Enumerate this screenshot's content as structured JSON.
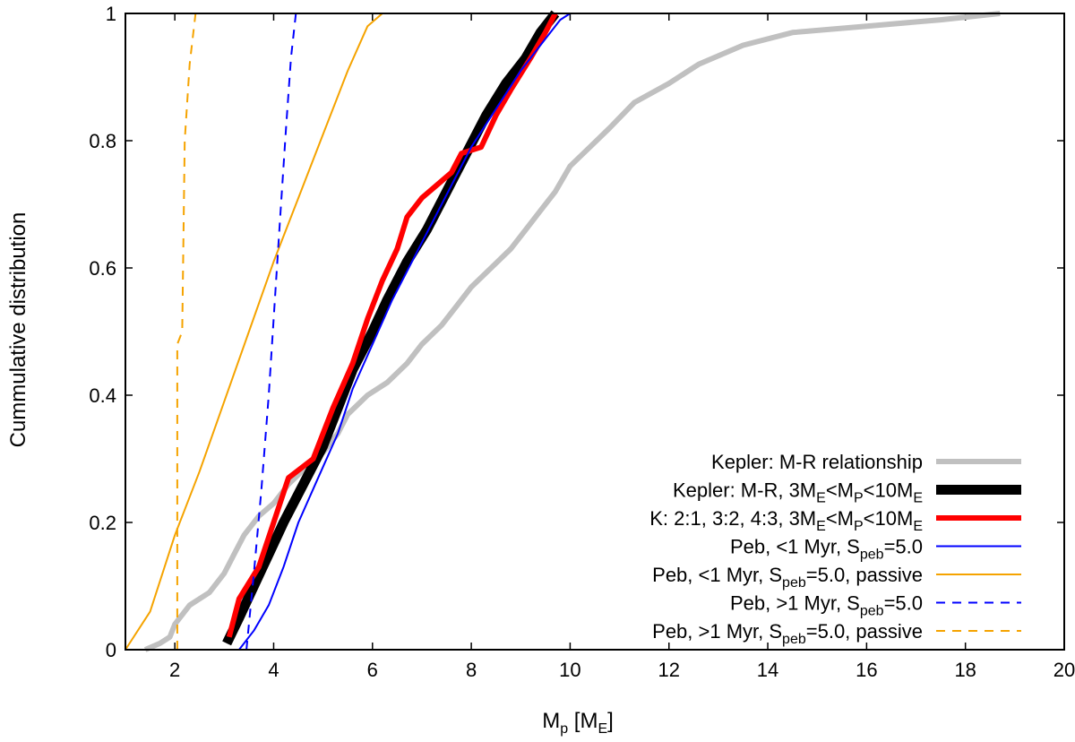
{
  "chart_data": {
    "type": "line",
    "xlabel": {
      "base": "M",
      "sub": "p",
      "rest": " [M",
      "sub2": "E",
      "end": "]"
    },
    "ylabel": "Cummulative distribution",
    "xlim": [
      1,
      20
    ],
    "ylim": [
      0,
      1
    ],
    "xticks": [
      2,
      4,
      6,
      8,
      10,
      12,
      14,
      16,
      18,
      20
    ],
    "xtick_labels": [
      "2",
      "4",
      "6",
      "8",
      "10",
      "12",
      "14",
      "16",
      "18",
      "20"
    ],
    "yticks": [
      0,
      0.2,
      0.4,
      0.6,
      0.8,
      1
    ],
    "ytick_labels": [
      "0",
      "0.2",
      "0.4",
      "0.6",
      "0.8",
      "1"
    ],
    "legend_position": "bottom-right",
    "series": [
      {
        "id": "kepler-mr",
        "legend": [
          {
            "t": "Kepler: M-R relationship"
          }
        ],
        "color": "#c0c0c0",
        "width": 6,
        "dash": "",
        "points": [
          [
            1.4,
            0
          ],
          [
            1.7,
            0.01
          ],
          [
            1.9,
            0.02
          ],
          [
            2.0,
            0.04
          ],
          [
            2.3,
            0.07
          ],
          [
            2.7,
            0.09
          ],
          [
            3.0,
            0.12
          ],
          [
            3.2,
            0.15
          ],
          [
            3.4,
            0.18
          ],
          [
            3.7,
            0.21
          ],
          [
            4.0,
            0.23
          ],
          [
            4.3,
            0.26
          ],
          [
            4.7,
            0.29
          ],
          [
            5.0,
            0.31
          ],
          [
            5.3,
            0.34
          ],
          [
            5.5,
            0.37
          ],
          [
            5.9,
            0.4
          ],
          [
            6.3,
            0.42
          ],
          [
            6.7,
            0.45
          ],
          [
            7.0,
            0.48
          ],
          [
            7.4,
            0.51
          ],
          [
            7.7,
            0.54
          ],
          [
            8.0,
            0.57
          ],
          [
            8.4,
            0.6
          ],
          [
            8.8,
            0.63
          ],
          [
            9.1,
            0.66
          ],
          [
            9.4,
            0.69
          ],
          [
            9.7,
            0.72
          ],
          [
            10.0,
            0.76
          ],
          [
            10.4,
            0.79
          ],
          [
            10.8,
            0.82
          ],
          [
            11.3,
            0.86
          ],
          [
            12.0,
            0.89
          ],
          [
            12.6,
            0.92
          ],
          [
            13.5,
            0.95
          ],
          [
            14.5,
            0.97
          ],
          [
            16.0,
            0.98
          ],
          [
            17.5,
            0.99
          ],
          [
            18.7,
            1.0
          ]
        ]
      },
      {
        "id": "kepler-mr-cut",
        "legend": [
          {
            "t": "Kepler: M-R, 3M"
          },
          {
            "t": "E",
            "s": true
          },
          {
            "t": "<M"
          },
          {
            "t": "P",
            "s": true
          },
          {
            "t": "<10M"
          },
          {
            "t": "E",
            "s": true
          }
        ],
        "color": "#000000",
        "width": 11,
        "dash": "",
        "points": [
          [
            3.05,
            0.01
          ],
          [
            3.3,
            0.05
          ],
          [
            3.6,
            0.1
          ],
          [
            3.9,
            0.15
          ],
          [
            4.2,
            0.2
          ],
          [
            4.6,
            0.26
          ],
          [
            5.0,
            0.32
          ],
          [
            5.3,
            0.38
          ],
          [
            5.6,
            0.44
          ],
          [
            6.0,
            0.5
          ],
          [
            6.3,
            0.55
          ],
          [
            6.7,
            0.61
          ],
          [
            7.1,
            0.66
          ],
          [
            7.5,
            0.72
          ],
          [
            7.9,
            0.78
          ],
          [
            8.3,
            0.84
          ],
          [
            8.7,
            0.89
          ],
          [
            9.1,
            0.93
          ],
          [
            9.4,
            0.97
          ],
          [
            9.7,
            1.0
          ]
        ]
      },
      {
        "id": "resonant",
        "legend": [
          {
            "t": "K: 2:1, 3:2, 4:3,  3M"
          },
          {
            "t": "E",
            "s": true
          },
          {
            "t": "<M"
          },
          {
            "t": "P",
            "s": true
          },
          {
            "t": "<10M"
          },
          {
            "t": "E",
            "s": true
          }
        ],
        "color": "#ff0000",
        "width": 6,
        "dash": "",
        "points": [
          [
            3.1,
            0.02
          ],
          [
            3.3,
            0.08
          ],
          [
            3.7,
            0.13
          ],
          [
            4.0,
            0.2
          ],
          [
            4.3,
            0.27
          ],
          [
            4.8,
            0.3
          ],
          [
            5.2,
            0.38
          ],
          [
            5.6,
            0.45
          ],
          [
            5.9,
            0.52
          ],
          [
            6.2,
            0.58
          ],
          [
            6.5,
            0.63
          ],
          [
            6.7,
            0.68
          ],
          [
            7.0,
            0.71
          ],
          [
            7.3,
            0.73
          ],
          [
            7.6,
            0.75
          ],
          [
            7.8,
            0.78
          ],
          [
            8.2,
            0.79
          ],
          [
            8.5,
            0.84
          ],
          [
            8.8,
            0.88
          ],
          [
            9.2,
            0.93
          ],
          [
            9.5,
            0.97
          ],
          [
            9.7,
            1.0
          ]
        ]
      },
      {
        "id": "peb-early",
        "legend": [
          {
            "t": "Peb, <1 Myr, S"
          },
          {
            "t": "peb",
            "s": true
          },
          {
            "t": "=5.0"
          }
        ],
        "color": "#0000ff",
        "width": 2,
        "dash": "",
        "points": [
          [
            3.3,
            0
          ],
          [
            3.6,
            0.03
          ],
          [
            3.9,
            0.07
          ],
          [
            4.2,
            0.13
          ],
          [
            4.5,
            0.2
          ],
          [
            4.9,
            0.27
          ],
          [
            5.3,
            0.34
          ],
          [
            5.6,
            0.41
          ],
          [
            6.0,
            0.48
          ],
          [
            6.4,
            0.55
          ],
          [
            6.8,
            0.61
          ],
          [
            7.2,
            0.67
          ],
          [
            7.6,
            0.73
          ],
          [
            8.0,
            0.79
          ],
          [
            8.5,
            0.85
          ],
          [
            9.0,
            0.91
          ],
          [
            9.5,
            0.96
          ],
          [
            9.8,
            0.99
          ],
          [
            10.0,
            1.0
          ]
        ]
      },
      {
        "id": "peb-early-passive",
        "legend": [
          {
            "t": "Peb, <1 Myr, S"
          },
          {
            "t": "peb",
            "s": true
          },
          {
            "t": "=5.0, passive"
          }
        ],
        "color": "#f5a300",
        "width": 2,
        "dash": "",
        "points": [
          [
            1.0,
            0
          ],
          [
            1.5,
            0.06
          ],
          [
            2.0,
            0.18
          ],
          [
            2.5,
            0.28
          ],
          [
            3.0,
            0.39
          ],
          [
            3.5,
            0.5
          ],
          [
            4.0,
            0.61
          ],
          [
            4.5,
            0.71
          ],
          [
            5.0,
            0.81
          ],
          [
            5.5,
            0.91
          ],
          [
            5.9,
            0.98
          ],
          [
            6.2,
            1.0
          ]
        ]
      },
      {
        "id": "peb-late",
        "legend": [
          {
            "t": "Peb, >1 Myr, S"
          },
          {
            "t": "peb",
            "s": true
          },
          {
            "t": "=5.0"
          }
        ],
        "color": "#0000ff",
        "width": 2,
        "dash": "10,8",
        "points": [
          [
            3.45,
            0
          ],
          [
            3.6,
            0.12
          ],
          [
            3.75,
            0.25
          ],
          [
            3.9,
            0.4
          ],
          [
            4.05,
            0.58
          ],
          [
            4.15,
            0.7
          ],
          [
            4.25,
            0.82
          ],
          [
            4.35,
            0.93
          ],
          [
            4.45,
            1.0
          ]
        ]
      },
      {
        "id": "peb-late-passive",
        "legend": [
          {
            "t": "Peb, >1 Myr, S"
          },
          {
            "t": "peb",
            "s": true
          },
          {
            "t": "=5.0, passive"
          }
        ],
        "color": "#f5a300",
        "width": 2,
        "dash": "10,8",
        "points": [
          [
            2.05,
            0
          ],
          [
            2.05,
            0.48
          ],
          [
            2.15,
            0.5
          ],
          [
            2.2,
            0.8
          ],
          [
            2.3,
            0.92
          ],
          [
            2.42,
            1.0
          ]
        ]
      }
    ]
  }
}
